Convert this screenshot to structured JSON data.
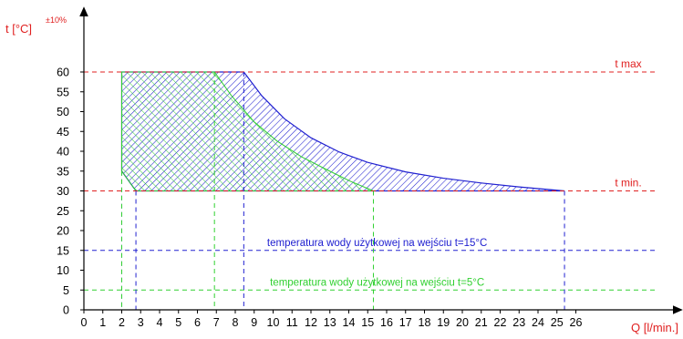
{
  "chart_data": {
    "type": "area",
    "xlabel": "Q [l/min.]",
    "ylabel": "t [°C]",
    "ylabel_superscript": "±10%",
    "xlim": [
      0,
      26
    ],
    "ylim": [
      0,
      60
    ],
    "x_ticks": [
      0,
      1,
      2,
      3,
      4,
      5,
      6,
      7,
      8,
      9,
      10,
      11,
      12,
      13,
      14,
      15,
      16,
      17,
      18,
      19,
      20,
      21,
      22,
      23,
      24,
      25,
      26
    ],
    "y_ticks": [
      0,
      5,
      10,
      15,
      20,
      25,
      30,
      35,
      40,
      45,
      50,
      55,
      60
    ],
    "grid": false,
    "reference_lines": [
      {
        "label": "t max",
        "y": 60,
        "color": "#e02020"
      },
      {
        "label": "t min.",
        "y": 30,
        "color": "#e02020"
      },
      {
        "label": "temperatura wody użytkowej na wejściu t=15°C",
        "y": 15,
        "color": "#2020d0"
      },
      {
        "label": "temperatura wody użytkowej na wejściu t=5°C",
        "y": 5,
        "color": "#30d030"
      }
    ],
    "series": [
      {
        "name": "temperatura wody użytkowej na wejściu t=15°C",
        "color": "#2020d0",
        "points": [
          [
            2.0,
            60
          ],
          [
            8.45,
            60
          ],
          [
            9.4,
            54.0
          ],
          [
            10.6,
            48.2
          ],
          [
            12.0,
            43.4
          ],
          [
            13.5,
            39.8
          ],
          [
            15.0,
            37.2
          ],
          [
            17.0,
            34.8
          ],
          [
            19.0,
            33.2
          ],
          [
            21.0,
            32.0
          ],
          [
            23.0,
            31.0
          ],
          [
            25.4,
            30
          ],
          [
            2.75,
            30
          ],
          [
            2.0,
            35
          ],
          [
            2.0,
            60
          ]
        ],
        "drop_lines_x": [
          2.0,
          2.75,
          8.45,
          25.4
        ]
      },
      {
        "name": "temperatura wody użytkowej na wejściu t=5°C",
        "color": "#30d030",
        "points": [
          [
            2.0,
            60
          ],
          [
            6.9,
            60
          ],
          [
            7.8,
            54.0
          ],
          [
            9.0,
            47.4
          ],
          [
            10.2,
            42.6
          ],
          [
            11.5,
            38.6
          ],
          [
            12.9,
            35.2
          ],
          [
            14.1,
            32.4
          ],
          [
            15.3,
            30
          ],
          [
            2.75,
            30
          ],
          [
            2.0,
            35
          ],
          [
            2.0,
            60
          ]
        ],
        "drop_lines_x": [
          2.0,
          6.9,
          15.3
        ]
      }
    ]
  }
}
